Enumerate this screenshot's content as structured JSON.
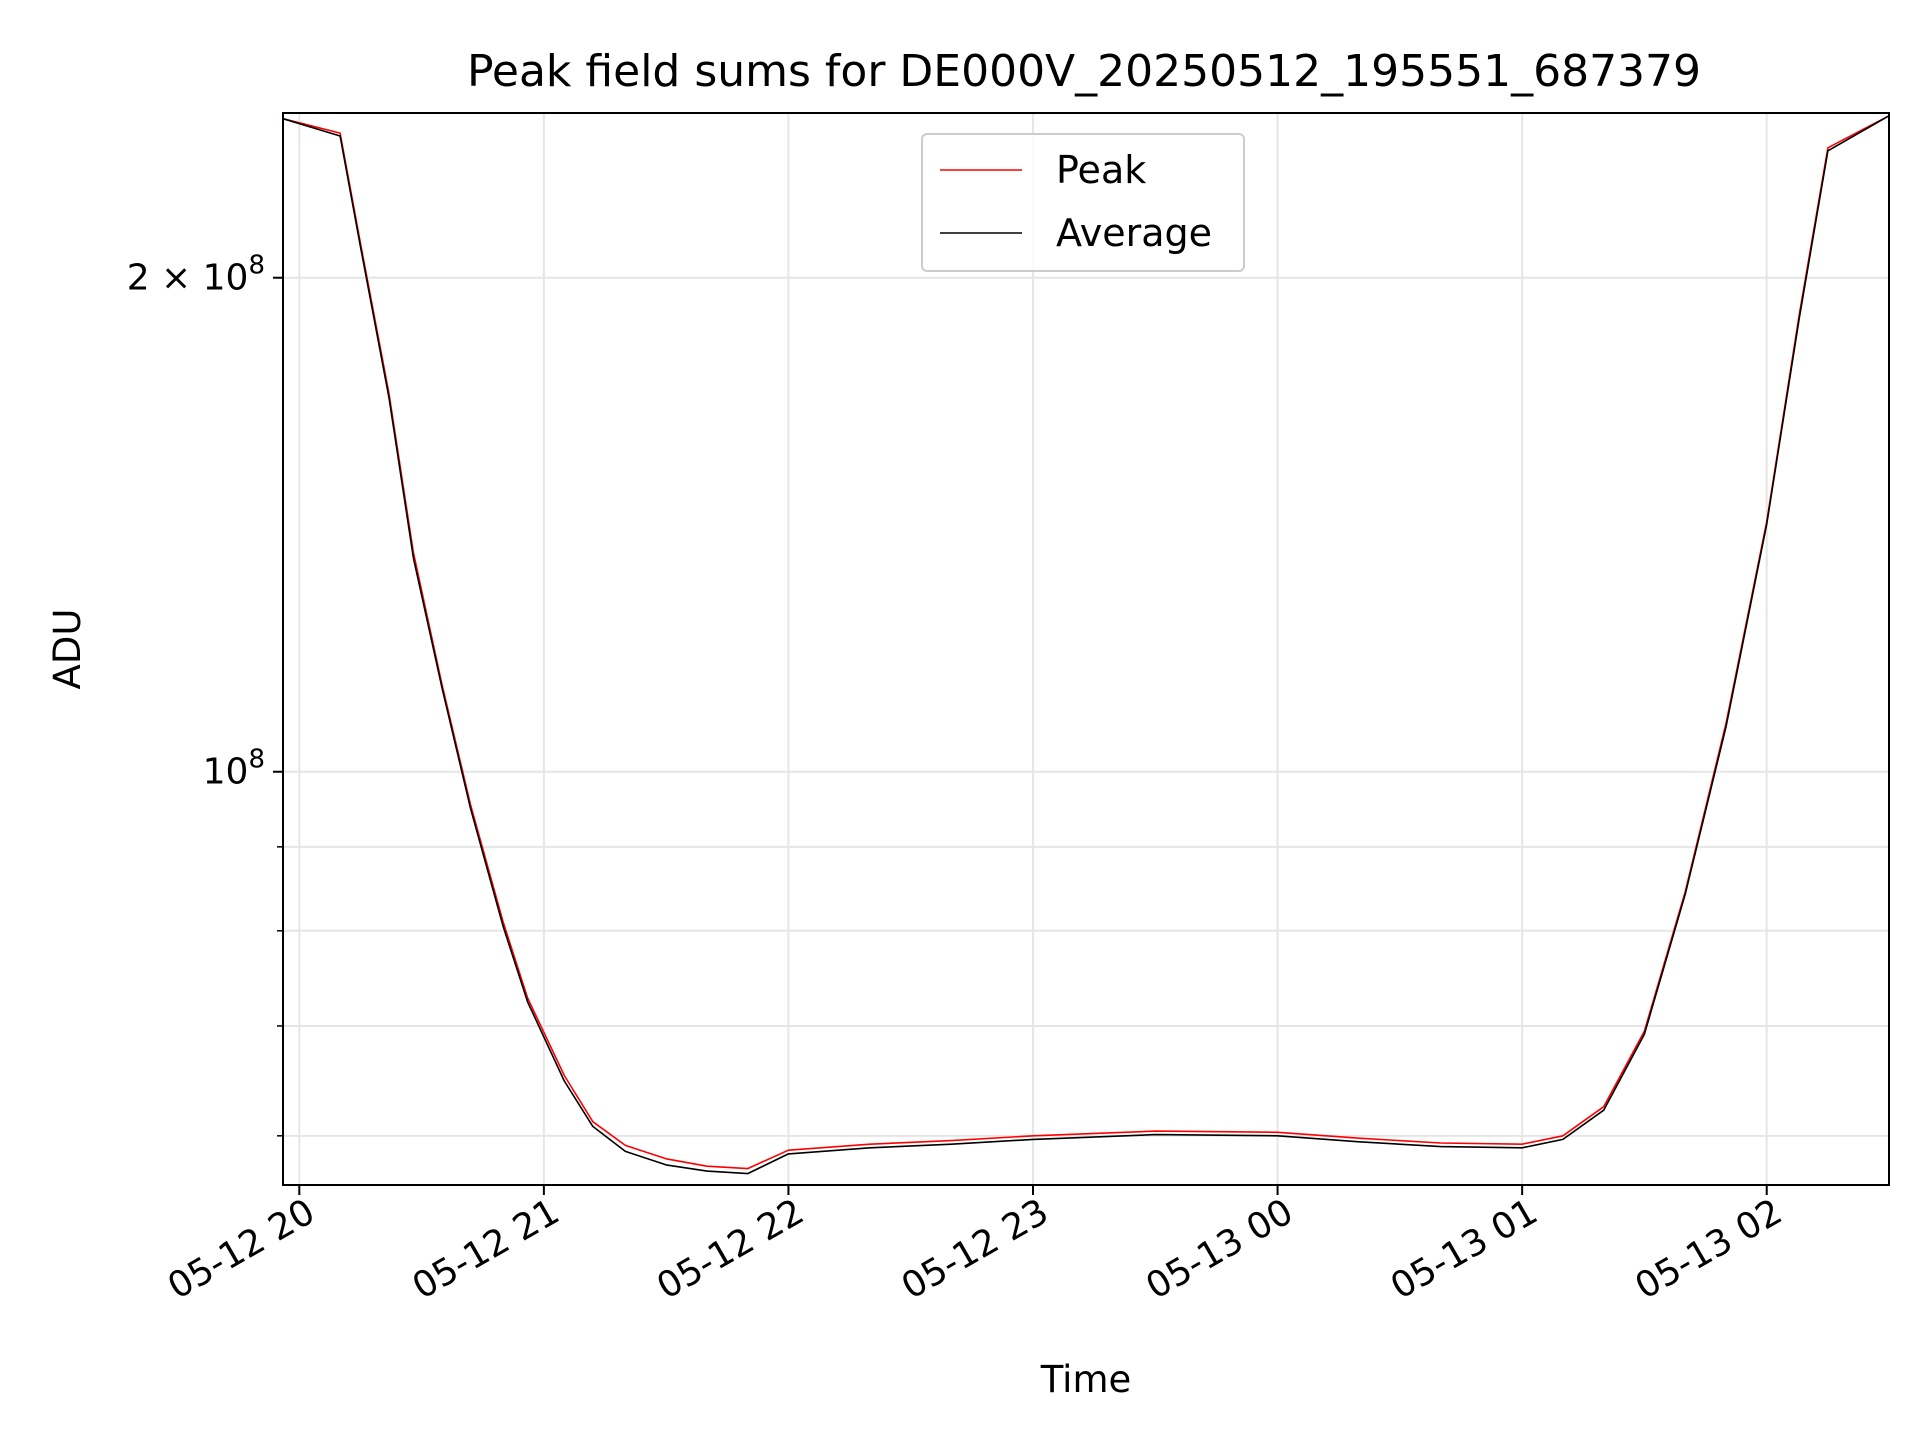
{
  "chart_data": {
    "type": "line",
    "title": "Peak field sums for DE000V_20250512_195551_687379",
    "xlabel": "Time",
    "ylabel": "ADU",
    "yscale": "log",
    "ylim": [
      56000000,
      252000000
    ],
    "xlim": [
      "2025-05-12T19:56:00",
      "2025-05-13T02:30:00"
    ],
    "x_ticks": [
      {
        "t": "2025-05-12T20:00:00",
        "label": "05-12 20"
      },
      {
        "t": "2025-05-12T21:00:00",
        "label": "05-12 21"
      },
      {
        "t": "2025-05-12T22:00:00",
        "label": "05-12 22"
      },
      {
        "t": "2025-05-12T23:00:00",
        "label": "05-12 23"
      },
      {
        "t": "2025-05-13T00:00:00",
        "label": "05-13 00"
      },
      {
        "t": "2025-05-13T01:00:00",
        "label": "05-13 01"
      },
      {
        "t": "2025-05-13T02:00:00",
        "label": "05-13 02"
      }
    ],
    "y_ticks_major": [
      {
        "v": 100000000,
        "label": "10",
        "exp": "8"
      },
      {
        "v": 200000000,
        "label": "2 × 10",
        "exp": "8"
      }
    ],
    "y_ticks_minor": [
      60000000,
      70000000,
      80000000,
      90000000
    ],
    "grid": true,
    "legend_position": "upper-center",
    "colors": {
      "peak": "#ff0000",
      "average": "#000000",
      "grid": "#e6e6e6"
    },
    "series": [
      {
        "name": "Peak",
        "color": "#ff0000",
        "x": [
          "2025-05-12T19:56:00",
          "2025-05-12T20:10:00",
          "2025-05-12T20:15:00",
          "2025-05-12T20:22:00",
          "2025-05-12T20:28:00",
          "2025-05-12T20:35:00",
          "2025-05-12T20:42:00",
          "2025-05-12T20:50:00",
          "2025-05-12T20:56:00",
          "2025-05-12T21:05:00",
          "2025-05-12T21:12:00",
          "2025-05-12T21:20:00",
          "2025-05-12T21:30:00",
          "2025-05-12T21:40:00",
          "2025-05-12T21:50:00",
          "2025-05-12T22:00:00",
          "2025-05-12T22:20:00",
          "2025-05-12T22:40:00",
          "2025-05-12T23:00:00",
          "2025-05-12T23:30:00",
          "2025-05-13T00:00:00",
          "2025-05-13T00:20:00",
          "2025-05-13T00:40:00",
          "2025-05-13T01:00:00",
          "2025-05-13T01:10:00",
          "2025-05-13T01:20:00",
          "2025-05-13T01:30:00",
          "2025-05-13T01:40:00",
          "2025-05-13T01:50:00",
          "2025-05-13T02:00:00",
          "2025-05-13T02:08:00",
          "2025-05-13T02:15:00",
          "2025-05-13T02:30:00"
        ],
        "y": [
          250000000,
          245000000,
          210000000,
          170000000,
          136000000,
          113000000,
          95500000,
          81000000,
          72800000,
          65300000,
          61200000,
          59200000,
          58100000,
          57500000,
          57300000,
          58800000,
          59300000,
          59600000,
          60000000,
          60400000,
          60300000,
          59800000,
          59400000,
          59300000,
          60000000,
          62500000,
          69500000,
          84500000,
          107000000,
          142000000,
          190000000,
          240000000,
          251000000
        ]
      },
      {
        "name": "Average",
        "color": "#000000",
        "x": [
          "2025-05-12T19:56:00",
          "2025-05-12T20:10:00",
          "2025-05-12T20:15:00",
          "2025-05-12T20:22:00",
          "2025-05-12T20:28:00",
          "2025-05-12T20:35:00",
          "2025-05-12T20:42:00",
          "2025-05-12T20:50:00",
          "2025-05-12T20:56:00",
          "2025-05-12T21:05:00",
          "2025-05-12T21:12:00",
          "2025-05-12T21:20:00",
          "2025-05-12T21:30:00",
          "2025-05-12T21:40:00",
          "2025-05-12T21:50:00",
          "2025-05-12T22:00:00",
          "2025-05-12T22:20:00",
          "2025-05-12T22:40:00",
          "2025-05-12T23:00:00",
          "2025-05-12T23:30:00",
          "2025-05-13T00:00:00",
          "2025-05-13T00:20:00",
          "2025-05-13T00:40:00",
          "2025-05-13T01:00:00",
          "2025-05-13T01:10:00",
          "2025-05-13T01:20:00",
          "2025-05-13T01:30:00",
          "2025-05-13T01:40:00",
          "2025-05-13T01:50:00",
          "2025-05-13T02:00:00",
          "2025-05-13T02:08:00",
          "2025-05-13T02:15:00",
          "2025-05-13T02:30:00"
        ],
        "y": [
          250000000,
          244000000,
          209000000,
          169000000,
          135000000,
          112500000,
          95000000,
          80500000,
          72400000,
          64800000,
          60800000,
          58700000,
          57600000,
          57100000,
          56900000,
          58500000,
          59000000,
          59300000,
          59700000,
          60100000,
          60000000,
          59500000,
          59100000,
          59000000,
          59700000,
          62200000,
          69200000,
          84200000,
          106500000,
          141500000,
          189000000,
          239000000,
          251000000
        ]
      }
    ]
  }
}
